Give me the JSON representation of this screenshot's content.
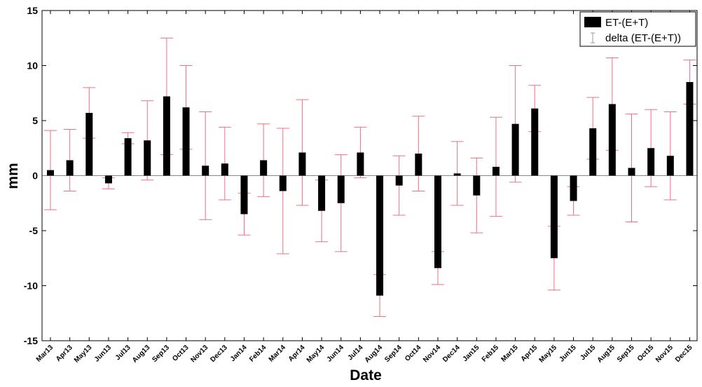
{
  "chart_data": {
    "type": "bar",
    "xlabel": "Date",
    "ylabel": "mm",
    "ylim": [
      -15,
      15
    ],
    "yticks": [
      -15,
      -10,
      -5,
      0,
      5,
      10,
      15
    ],
    "categories": [
      "Mar13",
      "Apr13",
      "May13",
      "Jun13",
      "Jul13",
      "Aug13",
      "Sep13",
      "Oct13",
      "Nov13",
      "Dec13",
      "Jan14",
      "Feb14",
      "Mar14",
      "Apr14",
      "May14",
      "Jun14",
      "Jul14",
      "Aug14",
      "Sep14",
      "Oct14",
      "Nov14",
      "Dec14",
      "Jan15",
      "Feb15",
      "Mar15",
      "Apr15",
      "May15",
      "Jun15",
      "Jul15",
      "Aug15",
      "Sep15",
      "Oct15",
      "Nov15",
      "Dec15"
    ],
    "series": [
      {
        "name": "ET-(E+T)",
        "color": "#000000",
        "values": [
          0.5,
          1.4,
          5.7,
          -0.7,
          3.4,
          3.2,
          7.2,
          6.2,
          0.9,
          1.1,
          -3.5,
          1.4,
          -1.4,
          2.1,
          -3.2,
          -2.5,
          2.1,
          -10.9,
          -0.9,
          2.0,
          -8.4,
          0.2,
          -1.8,
          0.8,
          4.7,
          6.1,
          -7.5,
          -2.3,
          4.3,
          6.5,
          0.7,
          2.5,
          1.8,
          8.5
        ]
      },
      {
        "name": "delta (ET-(E+T))",
        "color": "#f07080",
        "errors": [
          3.6,
          2.8,
          2.3,
          0.5,
          0.5,
          3.6,
          5.3,
          3.8,
          4.9,
          3.3,
          1.9,
          3.3,
          5.7,
          4.8,
          2.8,
          4.4,
          2.3,
          1.9,
          2.7,
          3.4,
          1.5,
          2.9,
          3.4,
          4.5,
          5.3,
          2.1,
          2.9,
          1.3,
          2.8,
          4.2,
          4.9,
          3.5,
          4.0,
          2.0
        ]
      }
    ],
    "grid": false,
    "legend_position": "top-right"
  },
  "colors": {
    "bar": "#000000",
    "error": "#f07080",
    "axis": "#000000",
    "zero_line": "#888888"
  }
}
